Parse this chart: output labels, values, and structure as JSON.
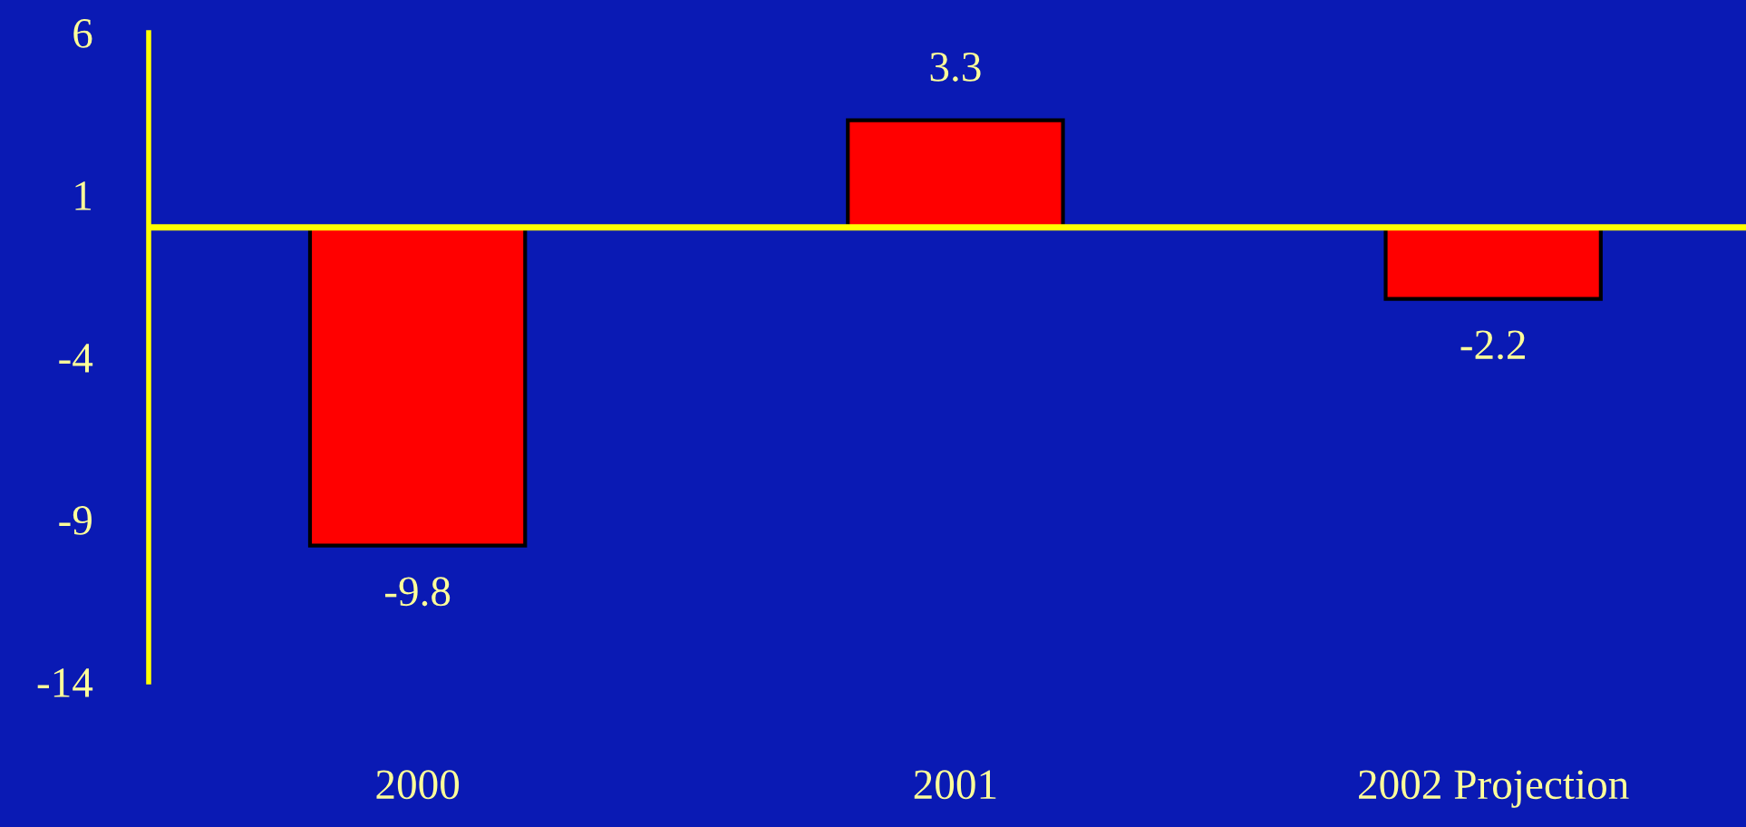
{
  "chart_data": {
    "type": "bar",
    "categories": [
      "2000",
      "2001",
      "2002 Projection"
    ],
    "values": [
      -9.8,
      3.3,
      -2.2
    ],
    "color": "#ff0000",
    "ylim": [
      -14,
      6
    ],
    "yticks": [
      6,
      1,
      -4,
      -9,
      -14
    ],
    "data_labels": true,
    "ref_lines": [
      {
        "axis": "y",
        "value": 0,
        "color": "#ffff00"
      }
    ],
    "grid": false,
    "legend": false
  }
}
